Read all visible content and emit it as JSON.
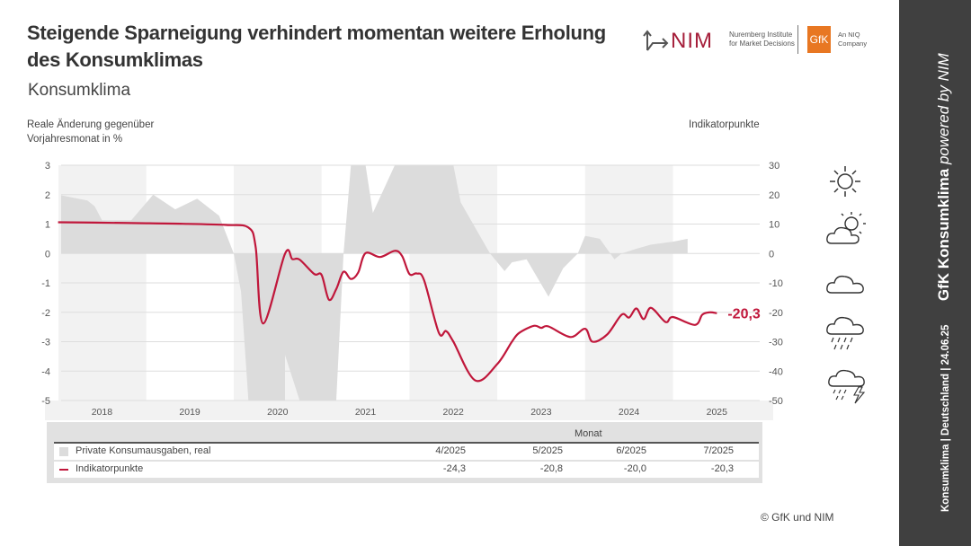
{
  "header": {
    "title": "Steigende Sparneigung verhindert momentan weitere Erholung des Konsumklimas",
    "subtitle": "Konsumklima",
    "logo_nim": "NIM",
    "logo_nim_sub": "Nuremberg Institute for Market Decisions",
    "logo_gfk": "GfK",
    "logo_gfk_sub": "An NIQ Company"
  },
  "chart_data": {
    "type": "line+area",
    "ylabel_left": "Reale Änderung gegenüber Vorjahresmonat in %",
    "ylabel_right": "Indikatorpunkte",
    "ylim_left": [
      -5,
      3
    ],
    "ylim_right": [
      -50,
      30
    ],
    "yticks_left": [
      "3",
      "2",
      "1",
      "0",
      "-1",
      "-2",
      "-3",
      "-4",
      "-5"
    ],
    "yticks_right": [
      "30",
      "20",
      "10",
      "0",
      "-10",
      "-20",
      "-30",
      "-40",
      "-50"
    ],
    "x_tick_labels": [
      "2018",
      "2019",
      "2020",
      "2021",
      "2022",
      "2023",
      "2024",
      "2025"
    ],
    "grid": true,
    "alternating_year_bands": true,
    "end_label": "-20,3",
    "colors": {
      "line": "#c0173b",
      "area": "#dcdcdc",
      "band": "#f2f2f2"
    },
    "series": [
      {
        "name": "Private Konsumausgaben, real",
        "axis": "left",
        "type": "area",
        "points": [
          [
            "2018-01",
            2.0
          ],
          [
            "2018-05",
            1.8
          ],
          [
            "2018-06",
            1.6
          ],
          [
            "2018-07",
            1.13
          ],
          [
            "2018-11",
            1.13
          ],
          [
            "2019-02",
            2.0
          ],
          [
            "2019-05",
            1.5
          ],
          [
            "2019-08",
            1.86
          ],
          [
            "2019-11",
            1.28
          ],
          [
            "2020-01",
            0.0
          ],
          [
            "2020-02",
            -1.3
          ],
          [
            "2020-03",
            -5
          ],
          [
            "2020-08",
            -5
          ],
          [
            "2020-08",
            -3.45
          ],
          [
            "2020-10",
            -5
          ],
          [
            "2021-03",
            -5
          ],
          [
            "2021-04",
            0
          ],
          [
            "2021-05",
            3
          ],
          [
            "2021-07",
            3
          ],
          [
            "2021-08",
            1.38
          ],
          [
            "2021-11",
            3
          ],
          [
            "2022-07",
            3
          ],
          [
            "2022-08",
            1.74
          ],
          [
            "2022-12",
            0
          ],
          [
            "2023-02",
            -0.6
          ],
          [
            "2023-03",
            -0.3
          ],
          [
            "2023-05",
            -0.2
          ],
          [
            "2023-08",
            -1.47
          ],
          [
            "2023-10",
            -0.5
          ],
          [
            "2023-12",
            0
          ],
          [
            "2024-01",
            0.6
          ],
          [
            "2024-03",
            0.5
          ],
          [
            "2024-05",
            -0.2
          ],
          [
            "2024-06",
            0
          ],
          [
            "2024-08",
            0.16
          ],
          [
            "2024-10",
            0.3
          ],
          [
            "2025-01",
            0.4
          ],
          [
            "2025-03",
            0.5
          ]
        ]
      },
      {
        "name": "Indikatorpunkte",
        "axis": "right",
        "type": "line",
        "points": [
          [
            "2018-01",
            10.6
          ],
          [
            "2018-06",
            10.5
          ],
          [
            "2018-12",
            10.3
          ],
          [
            "2019-06",
            10.1
          ],
          [
            "2019-12",
            9.7
          ],
          [
            "2020-03",
            8.8
          ],
          [
            "2020-04",
            2.1
          ],
          [
            "2020-05",
            -23.8
          ],
          [
            "2020-08",
            -0.1
          ],
          [
            "2020-09",
            -1.9
          ],
          [
            "2020-10",
            -2.1
          ],
          [
            "2020-12",
            -7.0
          ],
          [
            "2021-01",
            -7.3
          ],
          [
            "2021-02",
            -15.7
          ],
          [
            "2021-03",
            -12.1
          ],
          [
            "2021-04",
            -6.2
          ],
          [
            "2021-05",
            -8.7
          ],
          [
            "2021-06",
            -6.5
          ],
          [
            "2021-07",
            0.1
          ],
          [
            "2021-09",
            -1.2
          ],
          [
            "2021-11",
            0.9
          ],
          [
            "2021-12",
            -0.9
          ],
          [
            "2022-01",
            -7.0
          ],
          [
            "2022-02",
            -6.8
          ],
          [
            "2022-03",
            -9.1
          ],
          [
            "2022-05",
            -26.9
          ],
          [
            "2022-06",
            -26.4
          ],
          [
            "2022-07",
            -30.0
          ],
          [
            "2022-10",
            -43.2
          ],
          [
            "2023-01",
            -37.6
          ],
          [
            "2023-03",
            -30.0
          ],
          [
            "2023-04",
            -27.0
          ],
          [
            "2023-06",
            -24.6
          ],
          [
            "2023-07",
            -25.3
          ],
          [
            "2023-08",
            -24.8
          ],
          [
            "2023-11",
            -28.4
          ],
          [
            "2024-01",
            -25.6
          ],
          [
            "2024-02",
            -30.0
          ],
          [
            "2024-04",
            -27.6
          ],
          [
            "2024-06",
            -20.8
          ],
          [
            "2024-07",
            -21.8
          ],
          [
            "2024-08",
            -18.7
          ],
          [
            "2024-09",
            -22.3
          ],
          [
            "2024-10",
            -18.5
          ],
          [
            "2024-12",
            -23.3
          ],
          [
            "2025-01",
            -21.6
          ],
          [
            "2025-04",
            -24.3
          ],
          [
            "2025-05",
            -20.8
          ],
          [
            "2025-06",
            -20.0
          ],
          [
            "2025-07",
            -20.3
          ]
        ]
      }
    ]
  },
  "table": {
    "header": "Monat",
    "columns": [
      "4/2025",
      "5/2025",
      "6/2025",
      "7/2025"
    ],
    "rows": [
      {
        "label": "Private Konsumausgaben, real",
        "values": []
      },
      {
        "label": "Indikatorpunkte",
        "values": [
          "-24,3",
          "-20,8",
          "-20,0",
          "-20,3"
        ]
      }
    ]
  },
  "weather_icons": [
    "sun-icon",
    "sun-cloud-icon",
    "cloud-icon",
    "rain-cloud-icon",
    "thunderstorm-icon"
  ],
  "sidebar": {
    "left": "Konsumklima | Deutschland | 24.06.25",
    "title_bold": "GfK Konsumklima",
    "title_italic": "powered by NIM"
  },
  "footer": {
    "copyright": "© GfK und NIM"
  }
}
